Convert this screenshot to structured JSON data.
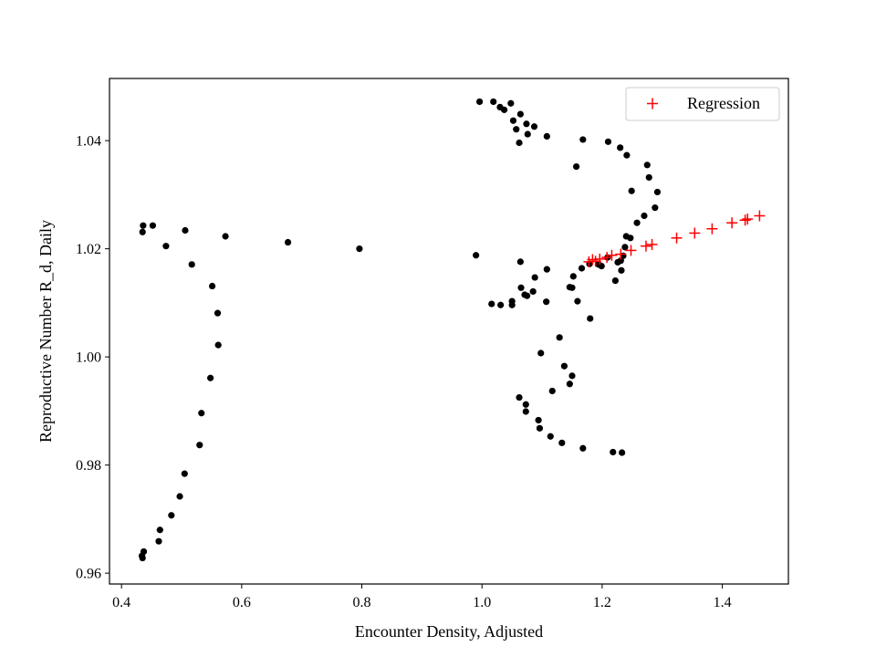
{
  "chart_data": {
    "type": "scatter",
    "title": "",
    "xlabel": "Encounter Density, Adjusted",
    "ylabel": "Reproductive Number R_d, Daily",
    "xlim": [
      0.38,
      1.51
    ],
    "ylim": [
      0.958,
      1.0515
    ],
    "xticks": [
      0.4,
      0.6,
      0.8,
      1.0,
      1.2,
      1.4
    ],
    "xtick_labels": [
      "0.4",
      "0.6",
      "0.8",
      "1.0",
      "1.2",
      "1.4"
    ],
    "yticks": [
      0.96,
      0.98,
      1.0,
      1.02,
      1.04
    ],
    "ytick_labels": [
      "0.96",
      "0.98",
      "1.00",
      "1.02",
      "1.04"
    ],
    "grid": false,
    "legend_position": "top-right",
    "colors": {
      "observed": "#000000",
      "regression": "#ff0000"
    },
    "series": [
      {
        "marker": "circle",
        "color": "#000000",
        "points": [
          [
            0.434,
            0.9632
          ],
          [
            0.437,
            0.964
          ],
          [
            0.435,
            0.9628
          ],
          [
            0.462,
            0.9659
          ],
          [
            0.464,
            0.968
          ],
          [
            0.483,
            0.9707
          ],
          [
            0.497,
            0.9742
          ],
          [
            0.505,
            0.9784
          ],
          [
            0.53,
            0.9837
          ],
          [
            0.533,
            0.9896
          ],
          [
            0.548,
            0.9961
          ],
          [
            0.561,
            1.0022
          ],
          [
            0.56,
            1.0081
          ],
          [
            0.551,
            1.0131
          ],
          [
            0.517,
            1.0171
          ],
          [
            0.474,
            1.0205
          ],
          [
            0.435,
            1.0231
          ],
          [
            0.436,
            1.0243
          ],
          [
            0.452,
            1.0243
          ],
          [
            0.506,
            1.0234
          ],
          [
            0.573,
            1.0223
          ],
          [
            0.677,
            1.0212
          ],
          [
            0.796,
            1.02
          ],
          [
            0.99,
            1.0188
          ],
          [
            0.996,
            1.0472
          ],
          [
            1.019,
            1.0472
          ],
          [
            1.03,
            1.0462
          ],
          [
            1.037,
            1.0457
          ],
          [
            1.048,
            1.0469
          ],
          [
            1.064,
            1.0449
          ],
          [
            1.052,
            1.0437
          ],
          [
            1.074,
            1.0431
          ],
          [
            1.087,
            1.0426
          ],
          [
            1.057,
            1.0421
          ],
          [
            1.076,
            1.0412
          ],
          [
            1.108,
            1.0408
          ],
          [
            1.062,
            1.0396
          ],
          [
            1.168,
            1.0402
          ],
          [
            1.21,
            1.0398
          ],
          [
            1.23,
            1.0387
          ],
          [
            1.241,
            1.0373
          ],
          [
            1.157,
            1.0352
          ],
          [
            1.275,
            1.0355
          ],
          [
            1.278,
            1.0332
          ],
          [
            1.249,
            1.0307
          ],
          [
            1.292,
            1.0305
          ],
          [
            1.288,
            1.0276
          ],
          [
            1.27,
            1.0261
          ],
          [
            1.258,
            1.0248
          ],
          [
            1.24,
            1.0223
          ],
          [
            1.247,
            1.022
          ],
          [
            1.238,
            1.0203
          ],
          [
            1.235,
            1.0187
          ],
          [
            1.231,
            1.0178
          ],
          [
            1.226,
            1.0175
          ],
          [
            1.209,
            1.0184
          ],
          [
            1.194,
            1.0171
          ],
          [
            1.179,
            1.0172
          ],
          [
            1.166,
            1.0164
          ],
          [
            1.199,
            1.0168
          ],
          [
            1.232,
            1.016
          ],
          [
            1.222,
            1.0141
          ],
          [
            1.064,
            1.0176
          ],
          [
            1.108,
            1.0162
          ],
          [
            1.152,
            1.0149
          ],
          [
            1.088,
            1.0147
          ],
          [
            1.146,
            1.0129
          ],
          [
            1.15,
            1.0128
          ],
          [
            1.065,
            1.0128
          ],
          [
            1.085,
            1.0121
          ],
          [
            1.071,
            1.0115
          ],
          [
            1.075,
            1.0113
          ],
          [
            1.159,
            1.0103
          ],
          [
            1.107,
            1.0102
          ],
          [
            1.016,
            1.0098
          ],
          [
            1.031,
            1.0096
          ],
          [
            1.05,
            1.0096
          ],
          [
            1.05,
            1.0103
          ],
          [
            1.18,
            1.0071
          ],
          [
            1.129,
            1.0036
          ],
          [
            1.098,
            1.0007
          ],
          [
            1.137,
            0.9983
          ],
          [
            1.15,
            0.9965
          ],
          [
            1.146,
            0.995
          ],
          [
            1.117,
            0.9937
          ],
          [
            1.062,
            0.9925
          ],
          [
            1.073,
            0.9912
          ],
          [
            1.073,
            0.9899
          ],
          [
            1.094,
            0.9883
          ],
          [
            1.096,
            0.9868
          ],
          [
            1.114,
            0.9853
          ],
          [
            1.133,
            0.9841
          ],
          [
            1.168,
            0.9831
          ],
          [
            1.218,
            0.9824
          ],
          [
            1.233,
            0.9823
          ]
        ]
      },
      {
        "name": "Regression",
        "marker": "plus",
        "color": "#ff0000",
        "points": [
          [
            1.178,
            1.0176
          ],
          [
            1.184,
            1.018
          ],
          [
            1.189,
            1.0177
          ],
          [
            1.196,
            1.0181
          ],
          [
            1.208,
            1.0184
          ],
          [
            1.216,
            1.0188
          ],
          [
            1.231,
            1.019
          ],
          [
            1.248,
            1.0197
          ],
          [
            1.273,
            1.0205
          ],
          [
            1.283,
            1.0208
          ],
          [
            1.324,
            1.022
          ],
          [
            1.354,
            1.0229
          ],
          [
            1.383,
            1.0237
          ],
          [
            1.416,
            1.0248
          ],
          [
            1.438,
            1.0253
          ],
          [
            1.442,
            1.0255
          ],
          [
            1.462,
            1.0261
          ]
        ]
      }
    ]
  }
}
